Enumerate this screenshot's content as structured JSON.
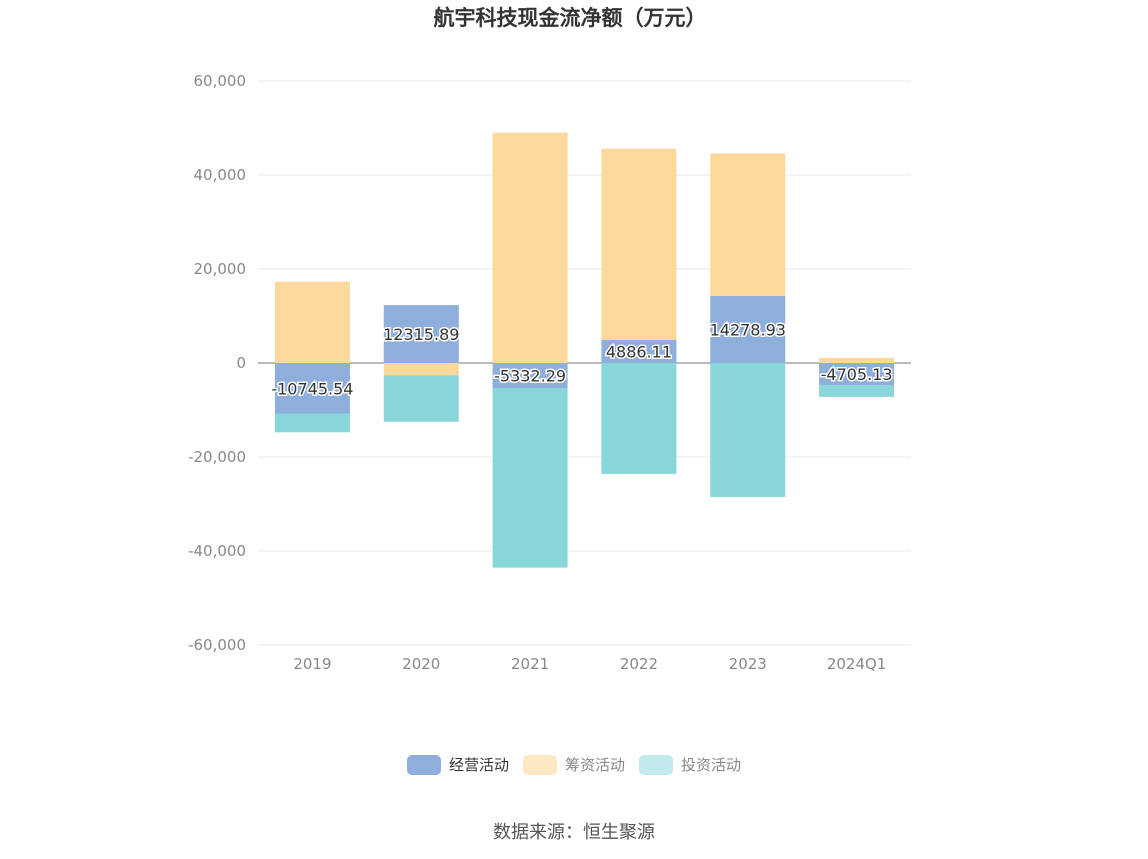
{
  "chart_data": {
    "type": "bar",
    "stacked": true,
    "title": "航宇科技现金流净额（万元）",
    "categories": [
      "2019",
      "2020",
      "2021",
      "2022",
      "2023",
      "2024Q1"
    ],
    "ylim": [
      -60000,
      60000
    ],
    "yticks": [
      "60,000",
      "40,000",
      "20,000",
      "0",
      "-20,000",
      "-40,000",
      "-60,000"
    ],
    "ytick_values": [
      60000,
      40000,
      20000,
      0,
      -20000,
      -40000,
      -60000
    ],
    "grid": true,
    "series": [
      {
        "name": "经营活动",
        "color": "#8eaedc",
        "values": [
          -10745.54,
          12315.89,
          -5332.29,
          4886.11,
          14278.93,
          -4705.13
        ],
        "labels": [
          "-10745.54",
          "12315.89",
          "-5332.29",
          "4886.11",
          "14278.93",
          "-4705.13"
        ]
      },
      {
        "name": "筹资活动",
        "color": "#fdd89b",
        "values": [
          17300,
          -2600,
          49000,
          40700,
          30300,
          1100
        ]
      },
      {
        "name": "投资活动",
        "color": "#88d6da",
        "values": [
          -4000,
          -9900,
          -38200,
          -23600,
          -28500,
          -2500
        ]
      }
    ],
    "legend_position": "bottom"
  },
  "legend": [
    {
      "label": "经营活动",
      "color": "#8eaedc"
    },
    {
      "label": "筹资活动",
      "color": "#fde8c4"
    },
    {
      "label": "投资活动",
      "color": "#c3e9eb"
    }
  ],
  "source": "数据来源：恒生聚源"
}
